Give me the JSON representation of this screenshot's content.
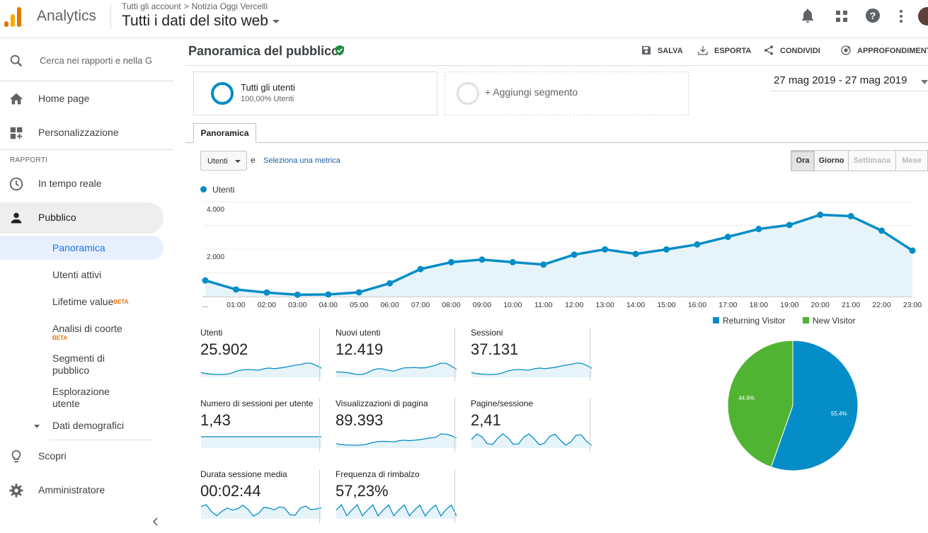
{
  "header": {
    "app_name": "Analytics",
    "breadcrumb": [
      "Tutti gli account",
      "Notizia Oggi Vercelli"
    ],
    "breadcrumb_sep": ">",
    "view_title": "Tutti i dati del sito web",
    "icons": [
      "bell-icon",
      "apps-grid-icon",
      "help-icon",
      "more-vert-icon"
    ],
    "logo_colors": [
      "#f9ab00",
      "#e37400",
      "#e37400"
    ]
  },
  "sidebar": {
    "search_placeholder": "Cerca nei rapporti e nella G",
    "home": "Home page",
    "customization": "Personalizzazione",
    "section_reports": "RAPPORTI",
    "realtime": "In tempo reale",
    "audience": "Pubblico",
    "sub": {
      "overview": "Panoramica",
      "active_users": "Utenti attivi",
      "lifetime_value": "Lifetime value",
      "cohort_line1": "Analisi di coorte",
      "segments_line1": "Segmenti di",
      "segments_line2": "pubblico",
      "explorer_line1": "Esplorazione",
      "explorer_line2": "utente",
      "demographics": "Dati demografici"
    },
    "beta": "BETA",
    "discover": "Scopri",
    "admin": "Amministratore"
  },
  "page": {
    "title": "Panoramica del pubblico",
    "actions": {
      "save": "SALVA",
      "export": "ESPORTA",
      "share": "CONDIVIDI",
      "insights": "APPROFONDIMENTI"
    },
    "segment1": {
      "name": "Tutti gli utenti",
      "pct": "100,00% Utenti"
    },
    "segment2": {
      "name": "+ Aggiungi segmento"
    },
    "date_range": "27 mag 2019 - 27 mag 2019",
    "tab": "Panoramica",
    "metric_select": "Utenti",
    "and_text": "e",
    "select_metric": "Seleziona una metrica",
    "granularity": [
      "Ora",
      "Giorno",
      "Settimana",
      "Mese"
    ],
    "series_legend": "Utenti"
  },
  "metrics": [
    {
      "title": "Utenti",
      "value": "25.902"
    },
    {
      "title": "Nuovi utenti",
      "value": "12.419"
    },
    {
      "title": "Sessioni",
      "value": "37.131"
    },
    {
      "title": "Numero di sessioni per utente",
      "value": "1,43"
    },
    {
      "title": "Visualizzazioni di pagina",
      "value": "89.393"
    },
    {
      "title": "Pagine/sessione",
      "value": "2,41"
    },
    {
      "title": "Durata sessione media",
      "value": "00:02:44"
    },
    {
      "title": "Frequenza di rimbalzo",
      "value": "57,23%"
    }
  ],
  "chart_data": [
    {
      "type": "line",
      "categories": [
        "...",
        "01:00",
        "02:00",
        "03:00",
        "04:00",
        "05:00",
        "06:00",
        "07:00",
        "08:00",
        "09:00",
        "10:00",
        "11:00",
        "12:00",
        "13:00",
        "14:00",
        "15:00",
        "16:00",
        "17:00",
        "18:00",
        "19:00",
        "20:00",
        "21:00",
        "22:00",
        "23:00"
      ],
      "series": [
        {
          "name": "Utenti",
          "color": "#058dc7",
          "values": [
            680,
            300,
            170,
            80,
            90,
            180,
            560,
            1160,
            1450,
            1560,
            1450,
            1350,
            1770,
            1990,
            1800,
            1990,
            2200,
            2520,
            2850,
            3020,
            3450,
            3390,
            2780,
            1940
          ]
        }
      ],
      "yticks": [
        4000,
        2000
      ],
      "ytick_labels": [
        "4.000",
        "2.000"
      ],
      "ylim": [
        0,
        4000
      ],
      "grid": true
    },
    {
      "type": "pie",
      "labels": [
        "Returning Visitor",
        "New Visitor"
      ],
      "values": [
        55.4,
        44.6
      ],
      "value_labels": [
        "55,4%",
        "44,6%"
      ],
      "colors": [
        "#058dc7",
        "#50b432"
      ],
      "legend": "top"
    }
  ]
}
